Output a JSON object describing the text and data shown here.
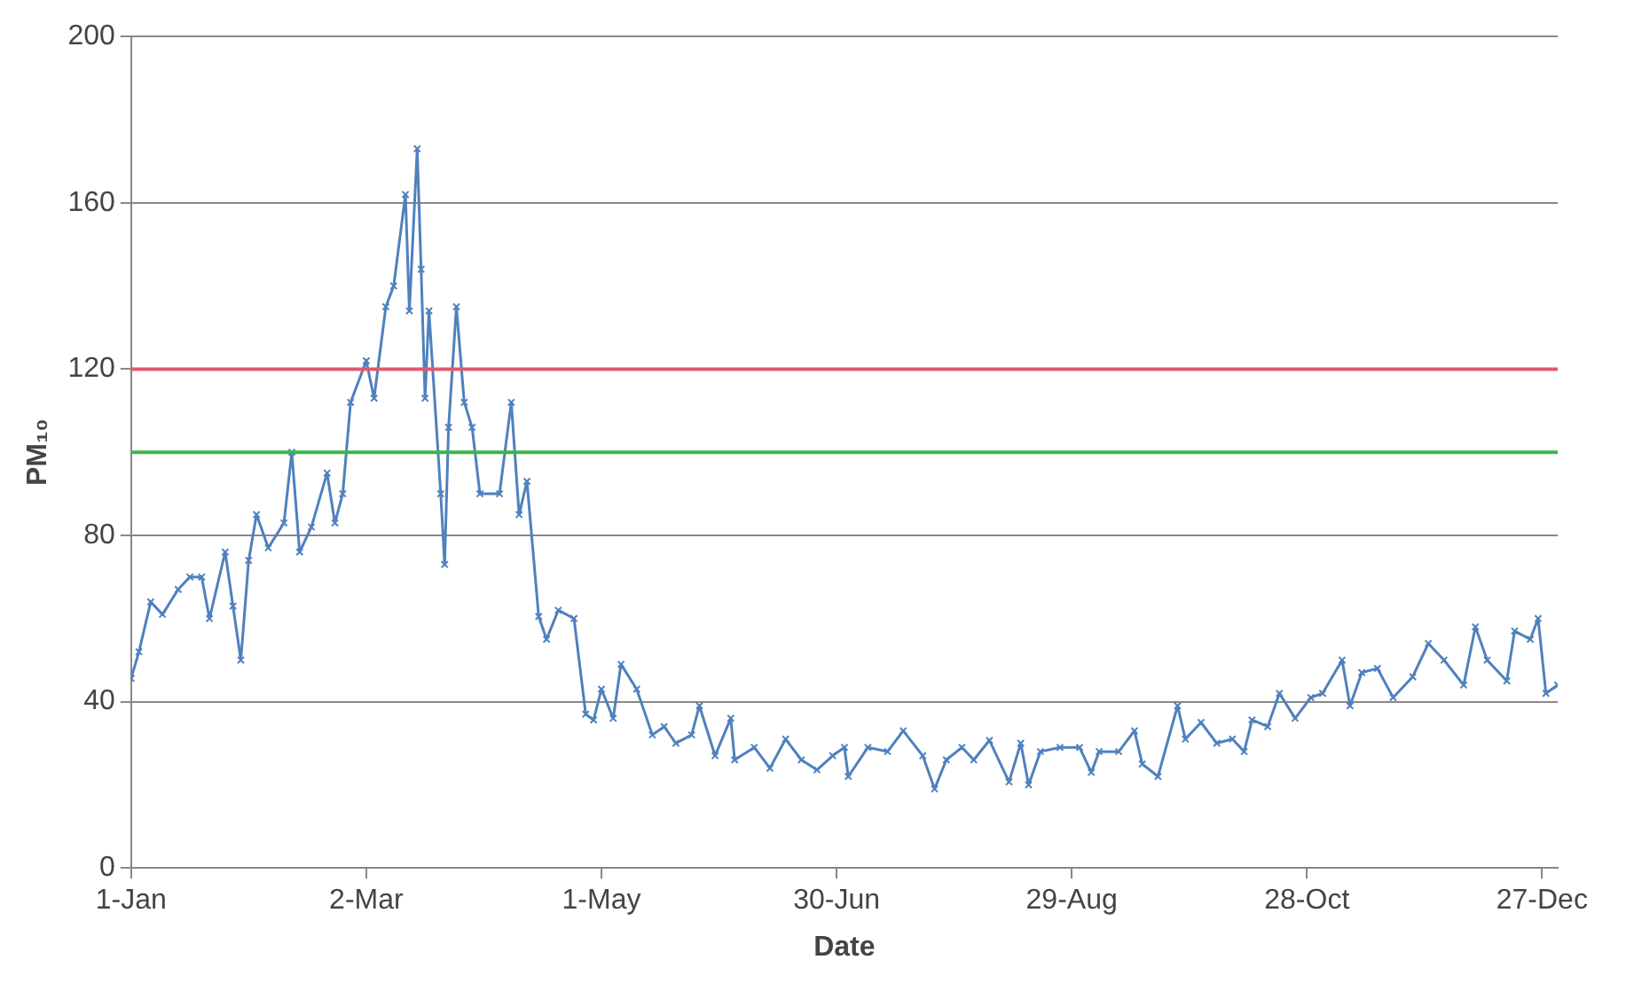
{
  "chart_data": {
    "type": "line",
    "xlabel": "Date",
    "ylabel": "PM₁₀",
    "xlim": [
      "--01-01",
      "--12-31"
    ],
    "xticks": [
      {
        "value": "--01-01",
        "label": "1-Jan"
      },
      {
        "value": "--03-02",
        "label": "2-Mar"
      },
      {
        "value": "--05-01",
        "label": "1-May"
      },
      {
        "value": "--06-30",
        "label": "30-Jun"
      },
      {
        "value": "--08-29",
        "label": "29-Aug"
      },
      {
        "value": "--10-28",
        "label": "28-Oct"
      },
      {
        "value": "--12-27",
        "label": "27-Dec"
      }
    ],
    "ylim": [
      0,
      200
    ],
    "yticks": [
      0,
      40,
      80,
      120,
      160,
      200
    ],
    "grid": "y",
    "legend": false,
    "marker": "cross",
    "line_style": "solid",
    "ref_lines": [
      {
        "axis": "y",
        "value": 120,
        "color": "#e05a6e"
      },
      {
        "axis": "y",
        "value": 100,
        "color": "#3cb44b"
      }
    ],
    "series": [
      {
        "color": "#4f81bd",
        "x": [
          "--01-01",
          "--01-03",
          "--01-06",
          "--01-09",
          "--01-13",
          "--01-16",
          "--01-19",
          "--01-21",
          "--01-25",
          "--01-27",
          "--01-29",
          "--01-31",
          "--02-02",
          "--02-05",
          "--02-09",
          "--02-11",
          "--02-13",
          "--02-16",
          "--02-20",
          "--02-22",
          "--02-24",
          "--02-26",
          "--03-02",
          "--03-04",
          "--03-07",
          "--03-09",
          "--03-12",
          "--03-13",
          "--03-15",
          "--03-16",
          "--03-17",
          "--03-18",
          "--03-21",
          "--03-22",
          "--03-23",
          "--03-25",
          "--03-27",
          "--03-29",
          "--03-31",
          "--04-05",
          "--04-08",
          "--04-10",
          "--04-12",
          "--04-15",
          "--04-17",
          "--04-20",
          "--04-24",
          "--04-27",
          "--04-29",
          "--05-01",
          "--05-04",
          "--05-06",
          "--05-10",
          "--05-14",
          "--05-17",
          "--05-20",
          "--05-24",
          "--05-26",
          "--05-30",
          "--06-03",
          "--06-04",
          "--06-09",
          "--06-13",
          "--06-17",
          "--06-21",
          "--06-25",
          "--06-29",
          "--07-02",
          "--07-03",
          "--07-08",
          "--07-13",
          "--07-17",
          "--07-22",
          "--07-25",
          "--07-28",
          "--08-01",
          "--08-04",
          "--08-08",
          "--08-13",
          "--08-16",
          "--08-18",
          "--08-21",
          "--08-26",
          "--08-31",
          "--09-03",
          "--09-05",
          "--09-10",
          "--09-14",
          "--09-16",
          "--09-20",
          "--09-25",
          "--09-27",
          "--10-01",
          "--10-05",
          "--10-09",
          "--10-12",
          "--10-14",
          "--10-18",
          "--10-21",
          "--10-25",
          "--10-29",
          "--11-01",
          "--11-06",
          "--11-08",
          "--11-11",
          "--11-15",
          "--11-19",
          "--11-24",
          "--11-28",
          "--12-02",
          "--12-07",
          "--12-10",
          "--12-13",
          "--12-18",
          "--12-20",
          "--12-24",
          "--12-26",
          "--12-28",
          "--12-31"
        ],
        "values": [
          45.6,
          52,
          64,
          61,
          67,
          70,
          70,
          60,
          76,
          63,
          50,
          74,
          85,
          77,
          83,
          100,
          76,
          82,
          95,
          83,
          90,
          112,
          122,
          113,
          135,
          140,
          162,
          134,
          173,
          144,
          113,
          134,
          90,
          73,
          106,
          135,
          112,
          106,
          90,
          90,
          112,
          85,
          93,
          60.5,
          55,
          62,
          60,
          37,
          35.6,
          43,
          36,
          49,
          43,
          32,
          34,
          30,
          32,
          39,
          27,
          36,
          26,
          29,
          24,
          31,
          26,
          23.6,
          27,
          29,
          22,
          29,
          28,
          33,
          27,
          19,
          26,
          29,
          26,
          30.7,
          20.7,
          30,
          20,
          28,
          29,
          29,
          23,
          28,
          28,
          33,
          25,
          22,
          39,
          31,
          35,
          30,
          31,
          28,
          35.6,
          34,
          42,
          36,
          41,
          42,
          50,
          39,
          47,
          48,
          41,
          46,
          54,
          50,
          44,
          58,
          50,
          45,
          57,
          55,
          60,
          42,
          44
        ]
      }
    ]
  }
}
